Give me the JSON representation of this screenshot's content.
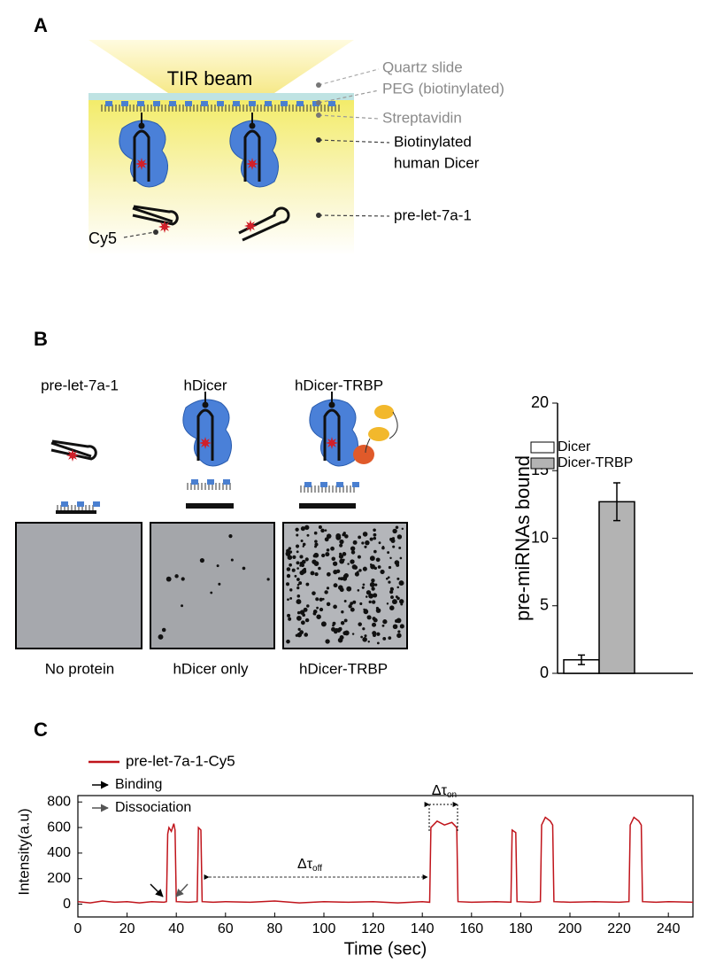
{
  "panel_labels": [
    "A",
    "B",
    "C"
  ],
  "diagram_a": {
    "beam": "TIR beam",
    "labels": [
      "Quartz slide",
      "PEG (biotinylated)",
      "Streptavidin",
      "Biotinylated",
      "human Dicer",
      "pre-let-7a-1"
    ],
    "cy5": "Cy5"
  },
  "panel_b": {
    "headers": [
      "pre-let-7a-1",
      "hDicer",
      "hDicer-TRBP"
    ],
    "captions": [
      "No protein",
      "hDicer only",
      "hDicer-TRBP"
    ]
  },
  "chart_data": [
    {
      "type": "bar",
      "ylabel": "pre-miRNAs bound",
      "categories": [
        null
      ],
      "series": [
        {
          "name": "Dicer",
          "color": "#ffffff",
          "values": [
            1.0
          ],
          "errors": [
            0.35
          ]
        },
        {
          "name": "Dicer-TRBP",
          "color": "#b3b3b3",
          "values": [
            12.7
          ],
          "errors": [
            1.4
          ]
        }
      ],
      "ylim": [
        0,
        20
      ],
      "yticks": [
        0,
        5,
        10,
        15,
        20
      ],
      "legend": "upper-left"
    },
    {
      "type": "line",
      "xlabel": "Time (sec)",
      "ylabel": "Intensity(a.u)",
      "x": [
        0,
        5,
        10,
        15,
        20,
        25,
        30,
        35,
        36,
        36.5,
        37,
        38,
        39,
        39.5,
        40,
        45,
        48.5,
        49,
        50,
        50.5,
        55,
        60,
        70,
        80,
        90,
        100,
        110,
        120,
        130,
        140,
        143,
        143.5,
        146,
        149,
        152,
        154,
        154.5,
        160,
        170,
        176,
        176.5,
        178,
        178.5,
        185,
        188,
        188.5,
        190,
        192,
        193,
        193.5,
        200,
        210,
        220,
        224,
        224.5,
        226,
        228,
        229,
        229.5,
        235,
        240,
        250
      ],
      "series": [
        {
          "name": "pre-let-7a-1-Cy5",
          "color": "#c0141b",
          "values": [
            20,
            10,
            25,
            15,
            20,
            10,
            20,
            15,
            20,
            550,
            600,
            570,
            630,
            580,
            20,
            15,
            20,
            600,
            580,
            20,
            15,
            20,
            15,
            25,
            10,
            20,
            15,
            20,
            10,
            20,
            15,
            600,
            650,
            620,
            640,
            600,
            20,
            15,
            20,
            15,
            580,
            560,
            20,
            15,
            20,
            620,
            680,
            650,
            620,
            20,
            15,
            20,
            15,
            20,
            620,
            680,
            650,
            620,
            20,
            15,
            20,
            15
          ]
        }
      ],
      "xlim": [
        0,
        250
      ],
      "xticks": [
        0,
        20,
        40,
        60,
        80,
        100,
        120,
        140,
        160,
        180,
        200,
        220,
        240
      ],
      "ylim": [
        -100,
        850
      ],
      "yticks": [
        0,
        200,
        400,
        600,
        800
      ],
      "annotations": [
        "Binding",
        "Dissociation"
      ],
      "delta_off": {
        "text": "Δτ",
        "sub": "off"
      },
      "delta_on": {
        "text": "Δτ",
        "sub": "on"
      }
    }
  ]
}
